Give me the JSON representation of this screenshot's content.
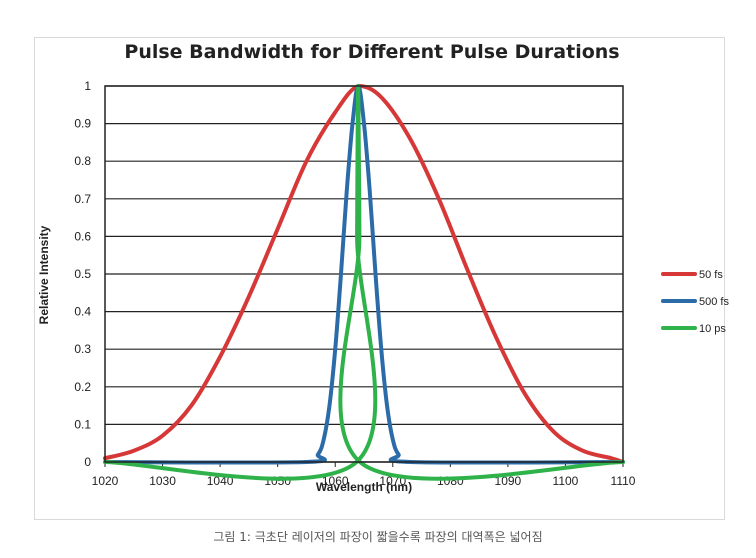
{
  "chart_data": {
    "type": "line",
    "title": "Pulse Bandwidth for Different Pulse Durations",
    "xlabel": "Wavelength (nm)",
    "ylabel": "Relative Intensity",
    "xlim": [
      1020,
      1110
    ],
    "ylim": [
      0,
      1
    ],
    "x_ticks": [
      "1020",
      "1030",
      "1040",
      "1050",
      "1060",
      "1070",
      "1080",
      "1090",
      "1100",
      "1110"
    ],
    "y_ticks": [
      "0",
      "0.1",
      "0.2",
      "0.3",
      "0.4",
      "0.5",
      "0.6",
      "0.7",
      "0.8",
      "0.9",
      "1"
    ],
    "grid": "horizontal",
    "legend_position": "right",
    "series": [
      {
        "name": "50 fs",
        "color": "#d63838",
        "x": [
          1020,
          1025,
          1030,
          1035,
          1040,
          1045,
          1050,
          1055,
          1060,
          1064,
          1068,
          1073,
          1078,
          1083,
          1088,
          1093,
          1098,
          1103,
          1108,
          1110
        ],
        "values": [
          0.01,
          0.03,
          0.07,
          0.15,
          0.28,
          0.44,
          0.62,
          0.8,
          0.93,
          1.0,
          0.97,
          0.86,
          0.7,
          0.51,
          0.33,
          0.18,
          0.08,
          0.03,
          0.01,
          0.0
        ]
      },
      {
        "name": "500 fs",
        "color": "#2b6ca8",
        "x": [
          1020,
          1055,
          1057,
          1058,
          1059,
          1060,
          1061,
          1062,
          1063,
          1064,
          1065,
          1066,
          1067,
          1068,
          1069,
          1070,
          1071,
          1073,
          1110
        ],
        "values": [
          0.0,
          0.0,
          0.02,
          0.06,
          0.15,
          0.3,
          0.5,
          0.72,
          0.9,
          1.0,
          0.9,
          0.72,
          0.5,
          0.3,
          0.15,
          0.06,
          0.02,
          0.0,
          0.0
        ]
      },
      {
        "name": "10 ps",
        "color": "#2fb24a",
        "x": [
          1020,
          1063.7,
          1063.8,
          1064.0,
          1064.2,
          1064.3,
          1110
        ],
        "values": [
          0.0,
          0.0,
          0.6,
          1.0,
          0.6,
          0.0,
          0.0
        ]
      }
    ]
  },
  "caption": "그림 1: 극초단 레이저의 파장이 짧을수록 파장의 대역폭은 넓어짐"
}
